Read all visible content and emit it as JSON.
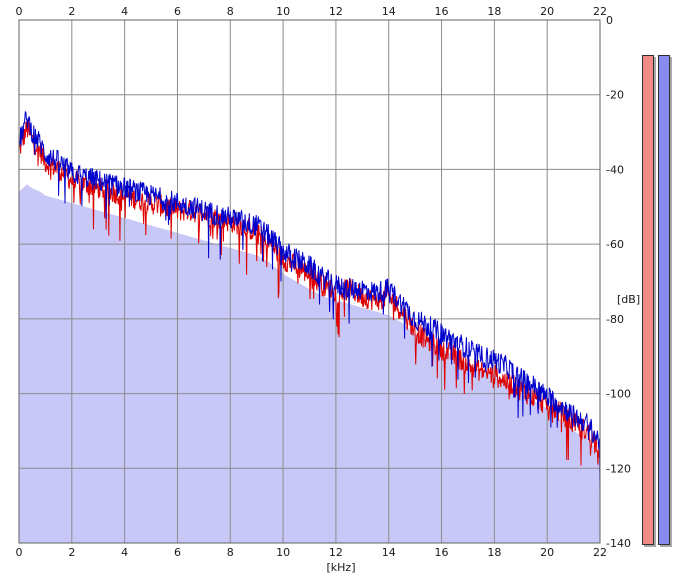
{
  "chart_data": {
    "type": "area",
    "xlabel": "[kHz]",
    "ylabel": "[dB]",
    "xlim": [
      0,
      22
    ],
    "ylim": [
      -140,
      0
    ],
    "xticks": [
      "0",
      "2",
      "4",
      "6",
      "8",
      "10",
      "12",
      "14",
      "16",
      "18",
      "20",
      "22"
    ],
    "yticks": [
      "0",
      "-20",
      "-40",
      "-60",
      "-80",
      "-100",
      "-120",
      "-140"
    ],
    "grid": true,
    "series": [
      {
        "color": "#0000cc",
        "x": [
          0,
          0.3,
          0.5,
          0.8,
          1,
          1.5,
          2,
          2.5,
          3,
          3.5,
          4,
          4.5,
          5,
          5.5,
          6,
          6.5,
          7,
          7.5,
          8,
          8.5,
          9,
          9.5,
          10,
          10.5,
          11,
          11.5,
          12,
          12.5,
          13,
          13.5,
          14,
          14.5,
          15,
          15.5,
          16,
          16.5,
          17,
          17.5,
          18,
          18.5,
          19,
          19.5,
          20,
          20.5,
          21,
          21.5,
          22
        ],
        "values": [
          -33,
          -26,
          -30,
          -33,
          -36,
          -38,
          -41,
          -42,
          -43,
          -44,
          -45,
          -46,
          -47,
          -48,
          -49,
          -50,
          -51,
          -52,
          -53,
          -54,
          -55,
          -58,
          -62,
          -64,
          -66,
          -69,
          -71,
          -72,
          -72,
          -73,
          -72,
          -76,
          -80,
          -82,
          -84,
          -86,
          -88,
          -90,
          -91,
          -93,
          -96,
          -98,
          -101,
          -103,
          -106,
          -108,
          -113
        ]
      },
      {
        "color": "#dd0000",
        "x": [
          0,
          0.3,
          0.5,
          0.8,
          1,
          1.5,
          2,
          2.5,
          3,
          3.5,
          4,
          4.5,
          5,
          5.5,
          6,
          6.5,
          7,
          7.5,
          8,
          8.5,
          9,
          9.5,
          10,
          10.5,
          11,
          11.5,
          12,
          12.5,
          13,
          13.5,
          14,
          14.5,
          15,
          15.5,
          16,
          16.5,
          17,
          17.5,
          18,
          18.5,
          19,
          19.5,
          20,
          20.5,
          21,
          21.5,
          22
        ],
        "values": [
          -35,
          -29,
          -32,
          -35,
          -38,
          -40,
          -43,
          -44,
          -45,
          -46,
          -47,
          -48,
          -49,
          -50,
          -51,
          -51,
          -52,
          -53,
          -54,
          -55,
          -57,
          -60,
          -64,
          -66,
          -68,
          -71,
          -73,
          -72,
          -74,
          -75,
          -74,
          -78,
          -83,
          -86,
          -88,
          -90,
          -92,
          -94,
          -95,
          -97,
          -99,
          -101,
          -103,
          -105,
          -108,
          -110,
          -115
        ]
      }
    ],
    "fill": {
      "color": "#c8c8f8",
      "values": [
        -46,
        -44,
        -45,
        -46,
        -47,
        -48,
        -49,
        -50,
        -51,
        -52,
        -53,
        -54,
        -55,
        -56,
        -57,
        -58,
        -59,
        -60,
        -61,
        -62,
        -63,
        -65,
        -68,
        -70,
        -72,
        -74,
        -75,
        -76,
        -77,
        -78,
        -79,
        -81,
        -84,
        -86,
        -88,
        -90,
        -92,
        -94,
        -95,
        -97,
        -100,
        -102,
        -104,
        -107,
        -110,
        -112,
        -116
      ]
    }
  },
  "meters": {
    "left_color": "#f38a8a",
    "right_color": "#8a8af3"
  }
}
